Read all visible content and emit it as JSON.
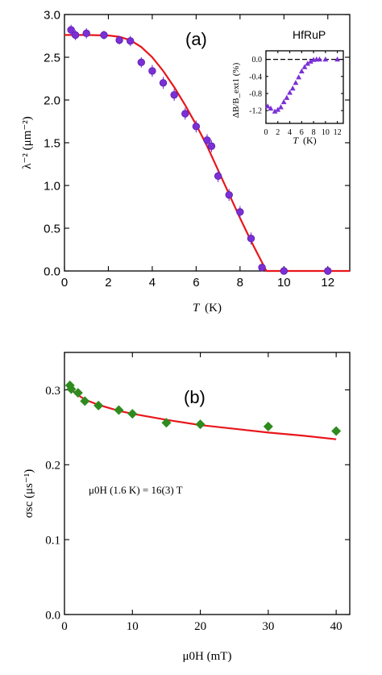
{
  "chart_data": [
    {
      "type": "scatter",
      "panel_label": "(a)",
      "material_label": "HfRuP",
      "xlabel": "T",
      "xlabel_unit": "(K)",
      "ylabel": "λ⁻² (μm⁻²)",
      "xlim": [
        0,
        13
      ],
      "ylim": [
        0,
        3.0
      ],
      "xticks": [
        "0",
        "2",
        "4",
        "6",
        "8",
        "10",
        "12"
      ],
      "yticks": [
        "0.0",
        "0.5",
        "1.0",
        "1.5",
        "2.0",
        "2.5",
        "3.0"
      ],
      "series": [
        {
          "kind": "points-with-errorbars",
          "color": "#7b2fd6",
          "x": [
            0.3,
            0.5,
            1.0,
            1.8,
            2.5,
            3.0,
            3.5,
            4.0,
            4.5,
            5.0,
            5.5,
            6.0,
            6.5,
            6.7,
            7.0,
            7.5,
            8.0,
            8.5,
            9.0,
            10.0,
            12.0
          ],
          "y": [
            2.82,
            2.76,
            2.78,
            2.76,
            2.7,
            2.69,
            2.44,
            2.34,
            2.2,
            2.06,
            1.84,
            1.69,
            1.53,
            1.46,
            1.11,
            0.89,
            0.69,
            0.38,
            0.04,
            0.0,
            0.0
          ],
          "err": [
            0.06,
            0.06,
            0.06,
            0.05,
            0.05,
            0.06,
            0.06,
            0.07,
            0.07,
            0.07,
            0.07,
            0.07,
            0.07,
            0.07,
            0.07,
            0.07,
            0.07,
            0.07,
            0.04,
            0.02,
            0.02
          ]
        },
        {
          "kind": "fit-line",
          "color": "#e8161b",
          "x": [
            0,
            1,
            2,
            2.5,
            3,
            3.5,
            4,
            4.5,
            5,
            5.5,
            6,
            6.5,
            7,
            7.5,
            8,
            8.5,
            9,
            9.2,
            10,
            13
          ],
          "y": [
            2.76,
            2.76,
            2.755,
            2.74,
            2.7,
            2.62,
            2.5,
            2.34,
            2.15,
            1.94,
            1.71,
            1.46,
            1.18,
            0.9,
            0.62,
            0.35,
            0.1,
            0.0,
            0.0,
            0.0
          ]
        }
      ],
      "inset": {
        "ylabel": "ΔB/B_ext1 (%)",
        "xlabel": "T",
        "xlabel_unit": "(K)",
        "xlim": [
          0,
          13
        ],
        "ylim": [
          -1.5,
          0.2
        ],
        "xticks": [
          "0",
          "2",
          "4",
          "6",
          "8",
          "10",
          "12"
        ],
        "yticks": [
          "0.0",
          "-0.4",
          "-0.8",
          "-1.2"
        ],
        "color": "#7b2fd6",
        "x": [
          0.3,
          0.8,
          1.5,
          2.0,
          2.5,
          3.0,
          3.5,
          4.0,
          4.5,
          5.0,
          5.5,
          6.0,
          6.5,
          7.0,
          7.5,
          8.0,
          8.5,
          9.0,
          10.0,
          12.0
        ],
        "y": [
          -1.1,
          -1.15,
          -1.22,
          -1.18,
          -1.12,
          -1.0,
          -0.9,
          -0.78,
          -0.68,
          -0.55,
          -0.42,
          -0.28,
          -0.18,
          -0.1,
          -0.05,
          -0.01,
          0.0,
          0.0,
          0.0,
          0.0
        ]
      }
    },
    {
      "type": "scatter",
      "panel_label": "(b)",
      "annotation": "μ0H (1.6 K) = 16(3) T",
      "xlabel": "μ0H (mT)",
      "ylabel": "σsc (μs⁻¹)",
      "xlim": [
        0,
        42
      ],
      "ylim": [
        0,
        0.35
      ],
      "xticks": [
        "0",
        "10",
        "20",
        "30",
        "40"
      ],
      "yticks": [
        "0.0",
        "0.1",
        "0.2",
        "0.3"
      ],
      "series": [
        {
          "kind": "points",
          "color": "#2e8b1e",
          "x": [
            0.8,
            1.0,
            2.0,
            3.0,
            5.0,
            8.0,
            10.0,
            15.0,
            20.0,
            30.0,
            40.0
          ],
          "y": [
            0.306,
            0.301,
            0.296,
            0.285,
            0.279,
            0.273,
            0.268,
            0.256,
            0.254,
            0.251,
            0.245
          ]
        },
        {
          "kind": "fit-line",
          "color": "#e8161b",
          "x": [
            1,
            2,
            3,
            5,
            8,
            10,
            15,
            20,
            25,
            30,
            35,
            40
          ],
          "y": [
            0.3,
            0.293,
            0.287,
            0.28,
            0.272,
            0.268,
            0.26,
            0.253,
            0.248,
            0.243,
            0.239,
            0.234
          ]
        }
      ]
    }
  ]
}
